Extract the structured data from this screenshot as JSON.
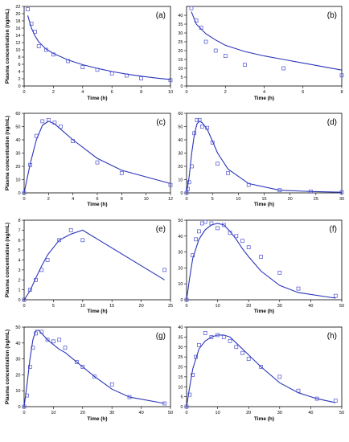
{
  "chart_data": [
    {
      "type": "scatter",
      "label": "(a)",
      "xlabel": "Time (h)",
      "ylabel": "Plasma concentration (ng/mL)",
      "xlim": [
        0,
        10
      ],
      "ylim": [
        0,
        22
      ],
      "xticks": [
        0,
        2,
        4,
        6,
        8,
        10
      ],
      "yticks": [
        0,
        2,
        4,
        6,
        8,
        10,
        12,
        14,
        16,
        18,
        20,
        22
      ],
      "observed": {
        "x": [
          0.25,
          0.5,
          0.75,
          1,
          1.5,
          2,
          3,
          4,
          5,
          6,
          7,
          8,
          10
        ],
        "y": [
          21.2,
          17.2,
          15.0,
          11.0,
          10.0,
          8.7,
          6.9,
          5.2,
          4.5,
          3.5,
          2.9,
          2.1,
          1.6
        ]
      },
      "model": {
        "x": [
          0.25,
          0.5,
          0.75,
          1,
          1.5,
          2,
          3,
          4,
          5,
          6,
          7,
          8,
          9,
          10
        ],
        "y": [
          19.5,
          16.0,
          13.8,
          12.2,
          10.2,
          9.0,
          7.2,
          5.9,
          4.9,
          4.0,
          3.3,
          2.7,
          2.2,
          1.8
        ]
      }
    },
    {
      "type": "scatter",
      "label": "(b)",
      "xlabel": "Time (h)",
      "ylabel": "",
      "xlim": [
        0,
        8
      ],
      "ylim": [
        0,
        45
      ],
      "xticks": [
        0,
        2,
        4,
        6,
        8
      ],
      "yticks": [
        0,
        5,
        10,
        15,
        20,
        25,
        30,
        35,
        40
      ],
      "observed": {
        "x": [
          0.25,
          0.5,
          0.75,
          1,
          1.5,
          2,
          3,
          5,
          8
        ],
        "y": [
          44,
          37,
          33,
          25,
          20,
          17,
          12,
          10,
          6
        ]
      },
      "model": {
        "x": [
          0.25,
          0.5,
          1,
          1.5,
          2,
          3,
          4,
          5,
          6,
          7,
          8
        ],
        "y": [
          42,
          35,
          29.5,
          26,
          23,
          19.5,
          17,
          15,
          13,
          11,
          9
        ]
      }
    },
    {
      "type": "scatter",
      "label": "(c)",
      "xlabel": "Time (h)",
      "ylabel": "Plasma concentration (ng/mL)",
      "xlim": [
        0,
        12
      ],
      "ylim": [
        0,
        60
      ],
      "xticks": [
        0,
        2,
        4,
        6,
        8,
        10,
        12
      ],
      "yticks": [
        0,
        10,
        20,
        30,
        40,
        50,
        60
      ],
      "observed": {
        "x": [
          0,
          0.5,
          1,
          1.5,
          2,
          2.5,
          3,
          4,
          6,
          8,
          12
        ],
        "y": [
          0,
          21,
          43,
          54,
          55,
          53,
          50,
          39,
          23,
          15,
          6
        ]
      },
      "model": {
        "x": [
          0,
          0.5,
          1,
          1.5,
          2,
          2.5,
          3,
          4,
          6,
          8,
          12
        ],
        "y": [
          0,
          22,
          40,
          51,
          54,
          52,
          48,
          40,
          26,
          17,
          7
        ]
      }
    },
    {
      "type": "scatter",
      "label": "(d)",
      "xlabel": "Time (h)",
      "ylabel": "",
      "xlim": [
        0,
        30
      ],
      "ylim": [
        0,
        60
      ],
      "xticks": [
        0,
        5,
        10,
        15,
        20,
        25,
        30
      ],
      "yticks": [
        0,
        10,
        20,
        30,
        40,
        50,
        60
      ],
      "observed": {
        "x": [
          0,
          0.25,
          0.5,
          1,
          1.5,
          2,
          2.5,
          3,
          4,
          5,
          6,
          8,
          12,
          18,
          24,
          30
        ],
        "y": [
          0,
          3,
          8,
          20,
          45,
          55,
          55,
          50,
          49,
          38,
          22,
          15,
          6,
          2,
          1,
          0.5
        ]
      },
      "model": {
        "x": [
          0,
          0.5,
          1,
          1.5,
          2,
          2.5,
          3,
          4,
          5,
          6,
          8,
          12,
          18,
          24,
          30
        ],
        "y": [
          0,
          12,
          30,
          44,
          52,
          54,
          53,
          48,
          39,
          30,
          18,
          7,
          2,
          1,
          0.5
        ]
      }
    },
    {
      "type": "scatter",
      "label": "(e)",
      "xlabel": "Time (h)",
      "ylabel": "Plasma concentration (ng/mL)",
      "xlim": [
        0,
        25
      ],
      "ylim": [
        0,
        8
      ],
      "xticks": [
        0,
        5,
        10,
        15,
        20,
        25
      ],
      "yticks": [
        0,
        1,
        2,
        3,
        4,
        5,
        6,
        7,
        8
      ],
      "observed": {
        "x": [
          0,
          1,
          2,
          3,
          4,
          6,
          8,
          10,
          24
        ],
        "y": [
          0,
          1,
          2,
          3,
          4,
          6,
          7,
          6,
          3
        ]
      },
      "model": {
        "x": [
          0,
          1,
          2,
          3,
          4,
          6,
          8,
          10,
          24
        ],
        "y": [
          0,
          0.9,
          2.2,
          3.4,
          4.5,
          6.0,
          6.6,
          7.0,
          2.0
        ]
      }
    },
    {
      "type": "scatter",
      "label": "(f)",
      "xlabel": "Time (h)",
      "ylabel": "",
      "xlim": [
        0,
        50
      ],
      "ylim": [
        0,
        50
      ],
      "xticks": [
        0,
        10,
        20,
        30,
        40,
        50
      ],
      "yticks": [
        0,
        10,
        20,
        30,
        40,
        50
      ],
      "observed": {
        "x": [
          0,
          2,
          3,
          4,
          5,
          6,
          8,
          10,
          12,
          14,
          16,
          18,
          20,
          24,
          30,
          36,
          48
        ],
        "y": [
          0,
          28,
          38,
          43,
          48,
          49,
          48,
          45,
          47,
          42,
          40,
          37,
          33,
          27,
          17,
          7,
          2.5
        ]
      },
      "model": {
        "x": [
          0,
          1,
          2,
          4,
          6,
          8,
          10,
          12,
          14,
          16,
          18,
          20,
          24,
          30,
          36,
          48
        ],
        "y": [
          0,
          14,
          26,
          38,
          44,
          47,
          48,
          47,
          43,
          38,
          32,
          27,
          18,
          9,
          4.5,
          1
        ]
      }
    },
    {
      "type": "scatter",
      "label": "(g)",
      "xlabel": "Time (h)",
      "ylabel": "Plasma concentration (ng/mL)",
      "xlim": [
        0,
        50
      ],
      "ylim": [
        0,
        50
      ],
      "xticks": [
        0,
        10,
        20,
        30,
        40,
        50
      ],
      "yticks": [
        0,
        10,
        20,
        30,
        40,
        50
      ],
      "observed": {
        "x": [
          0,
          1,
          2,
          3,
          4,
          6,
          8,
          10,
          12,
          14,
          18,
          20,
          24,
          30,
          36,
          48
        ],
        "y": [
          0,
          7,
          25,
          37,
          46,
          47,
          42,
          41,
          42,
          37,
          28,
          25,
          19,
          14,
          6,
          2
        ]
      },
      "model": {
        "x": [
          0,
          1,
          2,
          3,
          4,
          5,
          6,
          8,
          10,
          12,
          14,
          18,
          20,
          24,
          30,
          36,
          48
        ],
        "y": [
          0,
          14,
          30,
          42,
          48,
          48,
          46,
          42,
          39,
          36,
          34,
          28,
          25,
          19,
          11,
          6,
          2
        ]
      }
    },
    {
      "type": "scatter",
      "label": "(h)",
      "xlabel": "Time (h)",
      "ylabel": "",
      "xlim": [
        0,
        50
      ],
      "ylim": [
        0,
        40
      ],
      "xticks": [
        0,
        10,
        20,
        30,
        40,
        50
      ],
      "yticks": [
        0,
        5,
        10,
        15,
        20,
        25,
        30,
        35,
        40
      ],
      "observed": {
        "x": [
          0,
          1,
          2,
          3,
          4,
          6,
          8,
          10,
          12,
          14,
          16,
          18,
          20,
          24,
          30,
          36,
          42,
          48
        ],
        "y": [
          0,
          6,
          16,
          25,
          31,
          37,
          35,
          36,
          35,
          33,
          30,
          27,
          24,
          20,
          15,
          8,
          4,
          3
        ]
      },
      "model": {
        "x": [
          0,
          1,
          2,
          4,
          6,
          8,
          10,
          12,
          14,
          16,
          20,
          24,
          30,
          36,
          42,
          48
        ],
        "y": [
          0,
          10,
          19,
          29,
          33,
          35,
          36,
          36,
          35,
          32,
          26,
          20,
          12,
          7,
          4,
          2
        ]
      }
    }
  ]
}
